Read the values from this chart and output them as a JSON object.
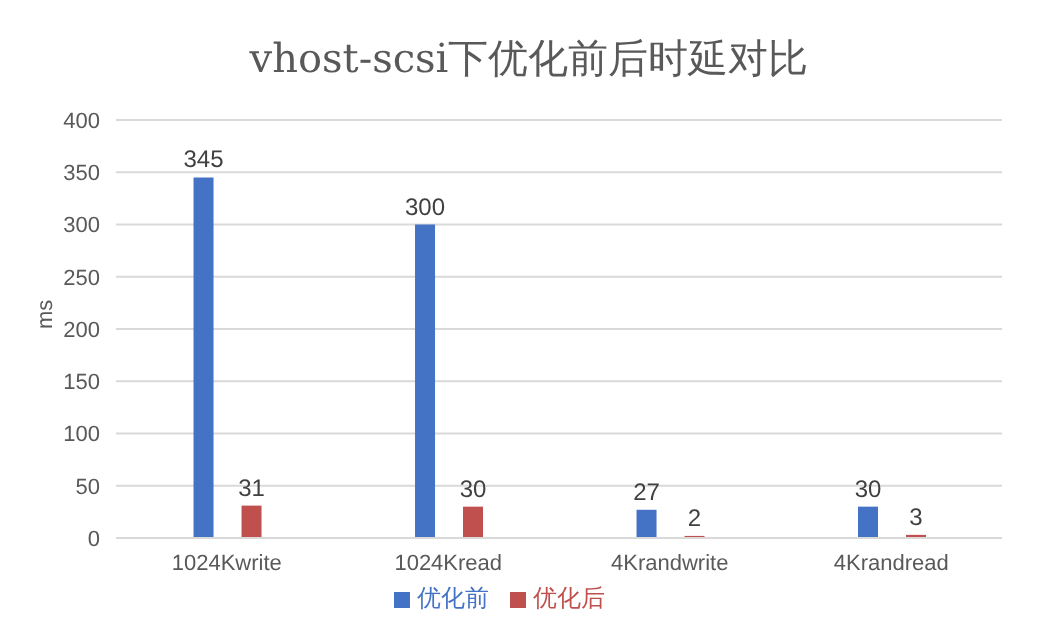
{
  "chart_data": {
    "type": "bar",
    "title": "vhost-scsi下优化前后时延对比",
    "ylabel": "ms",
    "categories": [
      "1024Kwrite",
      "1024Kread",
      "4Krandwrite",
      "4Krandread"
    ],
    "series": [
      {
        "name": "优化前",
        "color": "#4472c4",
        "values": [
          345,
          300,
          27,
          30
        ]
      },
      {
        "name": "优化后",
        "color": "#c0504d",
        "values": [
          31,
          30,
          2,
          3
        ]
      }
    ],
    "ylim": [
      0,
      400
    ],
    "yticks": [
      0,
      50,
      100,
      150,
      200,
      250,
      300,
      350,
      400
    ],
    "grid": "y",
    "legend": "bottom",
    "data_labels": true
  }
}
